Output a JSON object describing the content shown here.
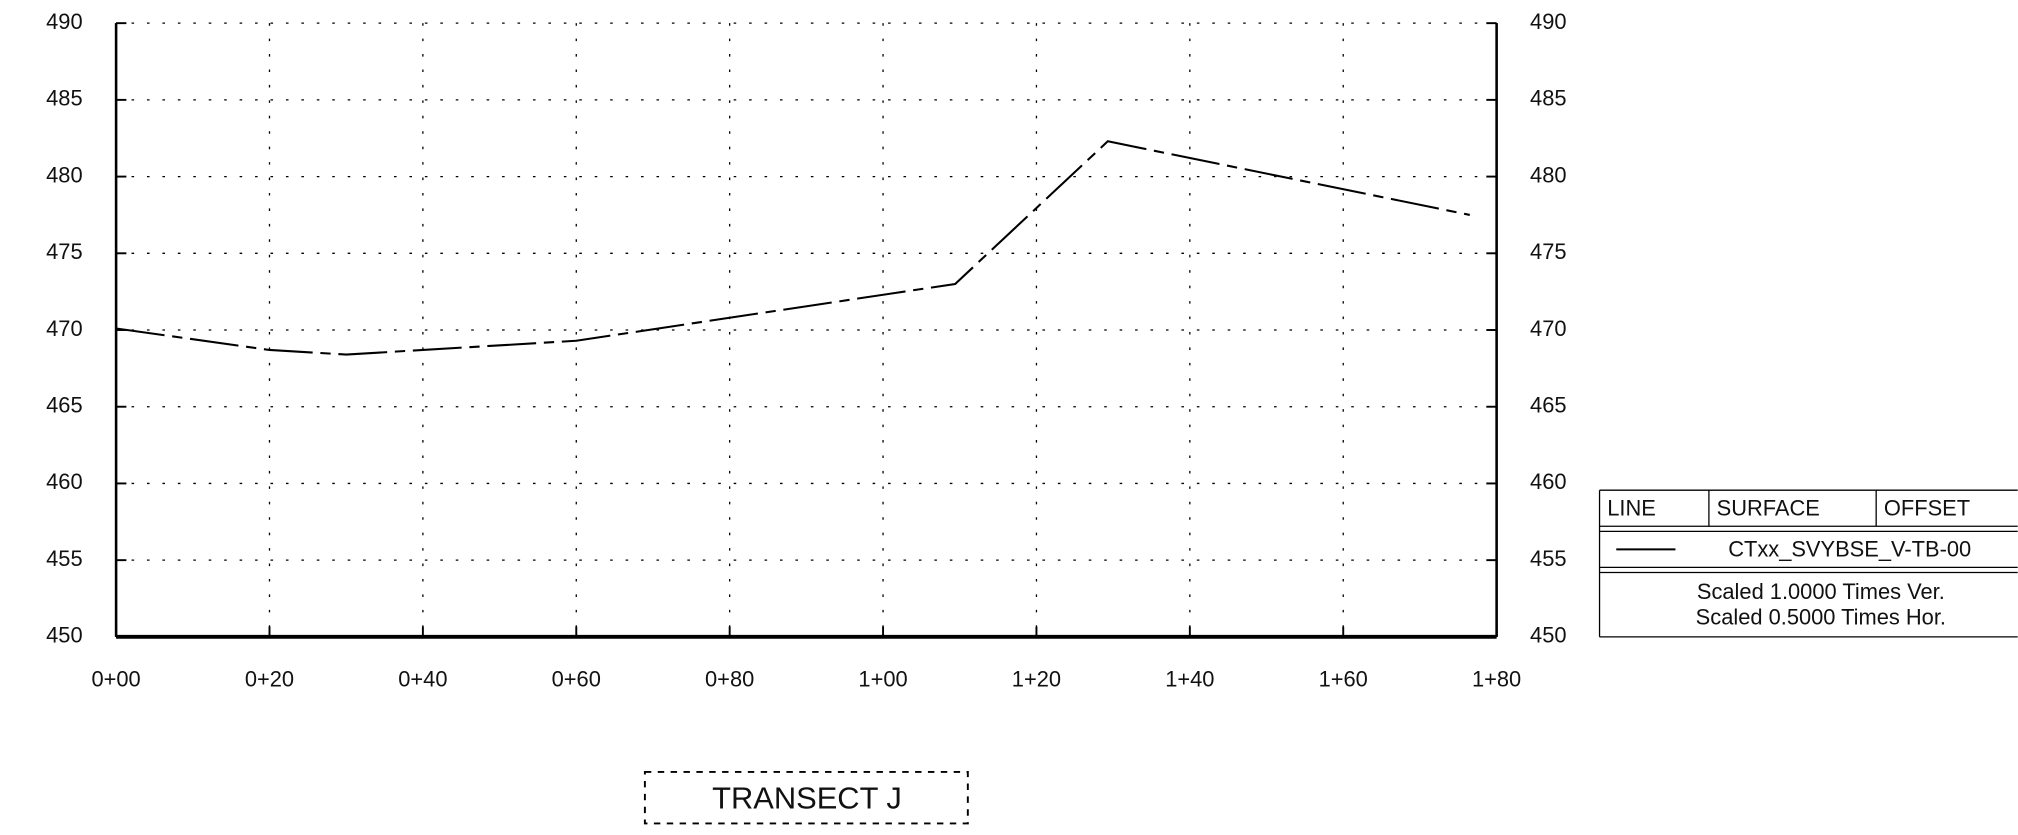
{
  "chart_data": {
    "type": "line",
    "title": "TRANSECT J",
    "x": [
      0,
      20,
      30,
      60,
      109.4,
      129.3,
      176.5
    ],
    "series": [
      {
        "name": "CTxx_SVYBSE_V-TB-00",
        "color": "#000000",
        "values": [
          470.1,
          468.7,
          468.4,
          469.3,
          473.0,
          482.3,
          477.5
        ]
      }
    ],
    "xlim": [
      0,
      180
    ],
    "xticks": [
      {
        "value": 0,
        "label": "0+00"
      },
      {
        "value": 20,
        "label": "0+20"
      },
      {
        "value": 40,
        "label": "0+40"
      },
      {
        "value": 60,
        "label": "0+60"
      },
      {
        "value": 80,
        "label": "0+80"
      },
      {
        "value": 100,
        "label": "1+00"
      },
      {
        "value": 120,
        "label": "1+20"
      },
      {
        "value": 140,
        "label": "1+40"
      },
      {
        "value": 160,
        "label": "1+60"
      },
      {
        "value": 180,
        "label": "1+80"
      }
    ],
    "ylim": [
      450,
      490
    ],
    "yticks": [
      450,
      455,
      460,
      465,
      470,
      475,
      480,
      485,
      490
    ],
    "grid": true,
    "legend": {
      "headers": [
        "LINE",
        "SURFACE",
        "OFFSET"
      ],
      "notes": [
        "Scaled 1.0000 Times Ver.",
        "Scaled 0.5000 Times Hor."
      ]
    }
  }
}
